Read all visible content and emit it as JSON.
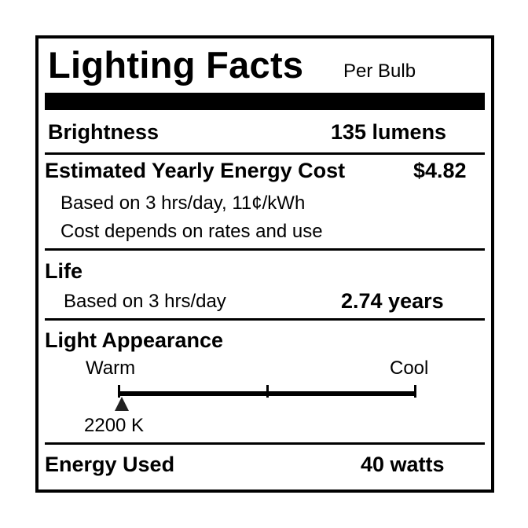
{
  "title": "Lighting Facts",
  "subtitle": "Per Bulb",
  "brightness": {
    "label": "Brightness",
    "value": "135 lumens"
  },
  "energy_cost": {
    "label": "Estimated Yearly Energy Cost",
    "value": "$4.82",
    "note1": "Based on 3 hrs/day, 11¢/kWh",
    "note2": "Cost depends on rates and use"
  },
  "life": {
    "label": "Life",
    "note": "Based on 3 hrs/day",
    "value": "2.74 years"
  },
  "light_appearance": {
    "label": "Light Appearance",
    "warm_label": "Warm",
    "cool_label": "Cool",
    "value": "2200 K",
    "marker_fraction": 0.0
  },
  "energy_used": {
    "label": "Energy Used",
    "value": "40 watts"
  }
}
